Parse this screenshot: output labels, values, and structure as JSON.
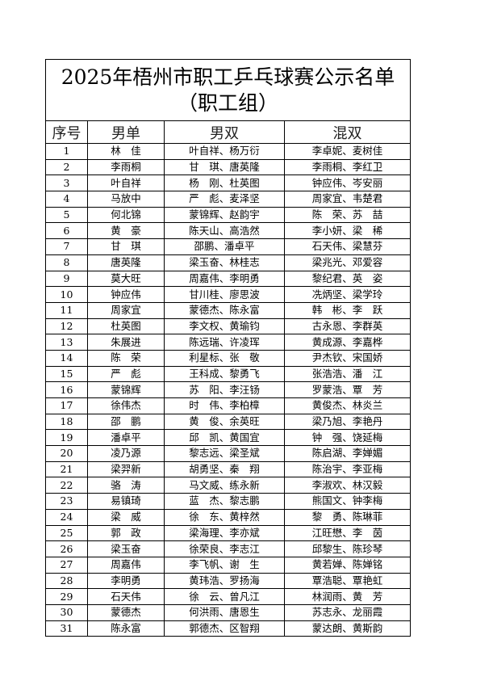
{
  "title": "2025年梧州市职工乒乓球赛公示名单",
  "subtitle": "（职工组）",
  "headers": [
    "序号",
    "男单",
    "男双",
    "混双"
  ],
  "rows": [
    [
      "1",
      "林　佳",
      "叶自祥、杨万衍",
      "李卓妮、麦树佳"
    ],
    [
      "2",
      "李雨桐",
      "甘　琪、唐英隆",
      "李雨桐、李红卫"
    ],
    [
      "3",
      "叶自祥",
      "杨　刚、杜英图",
      "钟应伟、岑安丽"
    ],
    [
      "4",
      "马放中",
      "严　彪、麦泽坚",
      "周家宜、韦楚君"
    ],
    [
      "5",
      "何北锦",
      "蒙锦辉、赵韵宇",
      "陈　荣、苏　喆"
    ],
    [
      "6",
      "黄　豪",
      "陈天山、高浩然",
      "李小妍、梁　稀"
    ],
    [
      "7",
      "甘　琪",
      "邵鹏、潘卓平",
      "石天伟、梁慧芬"
    ],
    [
      "8",
      "唐英隆",
      "梁玉奋、林桂志",
      "梁兆光、邓爱容"
    ],
    [
      "9",
      "莫大旺",
      "周嘉伟、李明勇",
      "黎纪君、英　姿"
    ],
    [
      "10",
      "钟应伟",
      "甘川桂、廖思波",
      "冼炳坚、梁学玲"
    ],
    [
      "11",
      "周家宜",
      "蒙德杰、陈永富",
      "韩　彬、李　跃"
    ],
    [
      "12",
      "杜英图",
      "李文权、黄瑜钧",
      "古永恩、李群英"
    ],
    [
      "13",
      "朱展进",
      "陈远瑞、许凌珲",
      "黄成源、李嘉桦"
    ],
    [
      "14",
      "陈　荣",
      "利星标、张　敬",
      "尹杰钦、宋国娇"
    ],
    [
      "15",
      "严　彪",
      "王科成、黎勇飞",
      "张浩浩、潘　江"
    ],
    [
      "16",
      "蒙锦辉",
      "苏　阳、李汪钖",
      "罗蒙浩、覃　芳"
    ],
    [
      "17",
      "徐伟杰",
      "时　伟、李柏樟",
      "黄俊杰、林炎兰"
    ],
    [
      "18",
      "邵　鹏",
      "黄　俊、余英旺",
      "梁乃旭、李艳丹"
    ],
    [
      "19",
      "潘卓平",
      "邱　凯、黄国宜",
      "钟　强、饶延梅"
    ],
    [
      "20",
      "凌乃源",
      "黎志远、梁圣斌",
      "陈启湖、李婵媚"
    ],
    [
      "21",
      "梁羿新",
      "胡勇坚、秦　翔",
      "陈治宇、李亚梅"
    ],
    [
      "22",
      "骆　涛",
      "马文威、练永新",
      "李淑欢、林汉毅"
    ],
    [
      "23",
      "易镇琦",
      "蓝　杰、黎志鹏",
      "熊国文、钟李梅"
    ],
    [
      "24",
      "梁　威",
      "徐　东、黄梓然",
      "黎　勇、陈琳菲"
    ],
    [
      "25",
      "郭　政",
      "梁海理、李亦斌",
      "江旺懋、李　茵"
    ],
    [
      "26",
      "梁玉奋",
      "徐荣良、李志江",
      "邱黎生、陈珍琴"
    ],
    [
      "27",
      "周嘉伟",
      "李飞帆、谢　生",
      "黄若婵、陈婵铭"
    ],
    [
      "28",
      "李明勇",
      "黄玮浩、罗扬海",
      "覃浩聪、覃艳虹"
    ],
    [
      "29",
      "石天伟",
      "徐　云、曾凡江",
      "林润雨、黄　芳"
    ],
    [
      "30",
      "蒙德杰",
      "何洪雨、唐恩生",
      "苏志永、龙丽霞"
    ],
    [
      "31",
      "陈永富",
      "郭德杰、区智翔",
      "蒙达朗、黄斯韵"
    ]
  ]
}
